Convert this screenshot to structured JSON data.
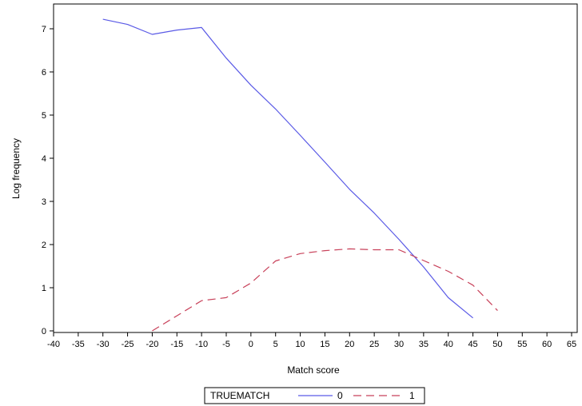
{
  "chart_data": {
    "type": "line",
    "xlabel": "Match score",
    "ylabel": "Log frequency",
    "xlim": [
      -40,
      65
    ],
    "ylim": [
      0,
      7.5
    ],
    "xticks": [
      -40,
      -35,
      -30,
      -25,
      -20,
      -15,
      -10,
      -5,
      0,
      5,
      10,
      15,
      20,
      25,
      30,
      35,
      40,
      45,
      50,
      55,
      60,
      65
    ],
    "yticks": [
      0,
      1,
      2,
      3,
      4,
      5,
      6,
      7
    ],
    "grid": false,
    "legend": {
      "title": "TRUEMATCH",
      "position": "bottom-center"
    },
    "series": [
      {
        "name": "0",
        "color": "#5a5ae6",
        "style": "solid",
        "x": [
          -30,
          -25,
          -20,
          -15,
          -10,
          -5,
          0,
          5,
          10,
          15,
          20,
          25,
          30,
          35,
          40,
          45
        ],
        "y": [
          7.22,
          7.1,
          6.87,
          6.97,
          7.03,
          6.32,
          5.69,
          5.14,
          4.53,
          3.91,
          3.28,
          2.73,
          2.12,
          1.48,
          0.77,
          0.3
        ]
      },
      {
        "name": "1",
        "color": "#c8415a",
        "style": "dashed",
        "x": [
          -20,
          -15,
          -10,
          -5,
          0,
          5,
          10,
          15,
          20,
          25,
          30,
          35,
          40,
          45,
          50
        ],
        "y": [
          0,
          0.35,
          0.7,
          0.77,
          1.11,
          1.62,
          1.79,
          1.86,
          1.9,
          1.88,
          1.88,
          1.63,
          1.38,
          1.06,
          0.47
        ]
      }
    ]
  }
}
